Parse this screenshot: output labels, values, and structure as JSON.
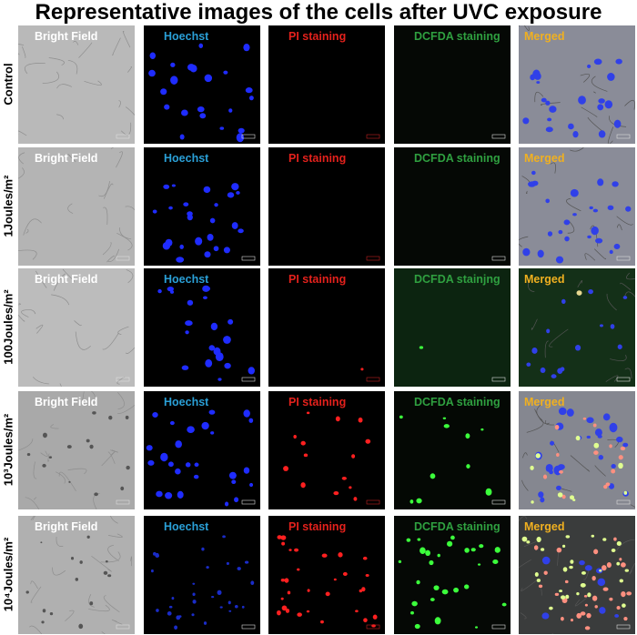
{
  "title": "Representative images of the cells after UVC exposure",
  "rows": [
    {
      "label": "Control",
      "panels": [
        "Bright Field",
        "Hoechst",
        "PI staining",
        "DCFDA staining",
        "Merged"
      ]
    },
    {
      "label": "1Joules/m²",
      "panels": [
        "Bright Field",
        "Hoechst",
        "PI staining",
        "DCFDA staining",
        "Merged"
      ]
    },
    {
      "label": "100Joules/m²",
      "panels": [
        "Bright Field",
        "Hoechst",
        "PI staining",
        "DCFDA stainjng",
        "Merged"
      ]
    },
    {
      "label": "10³Joules/m²",
      "panels": [
        "Bright Field",
        "Hoechst",
        "PI staining",
        "DCFDA staining",
        "Merged"
      ]
    },
    {
      "label": "10⁴Joules/m²",
      "panels": [
        "Bright Field",
        "Hoechst",
        "PI staining",
        "DCFDA staining",
        "Merged"
      ]
    }
  ]
}
